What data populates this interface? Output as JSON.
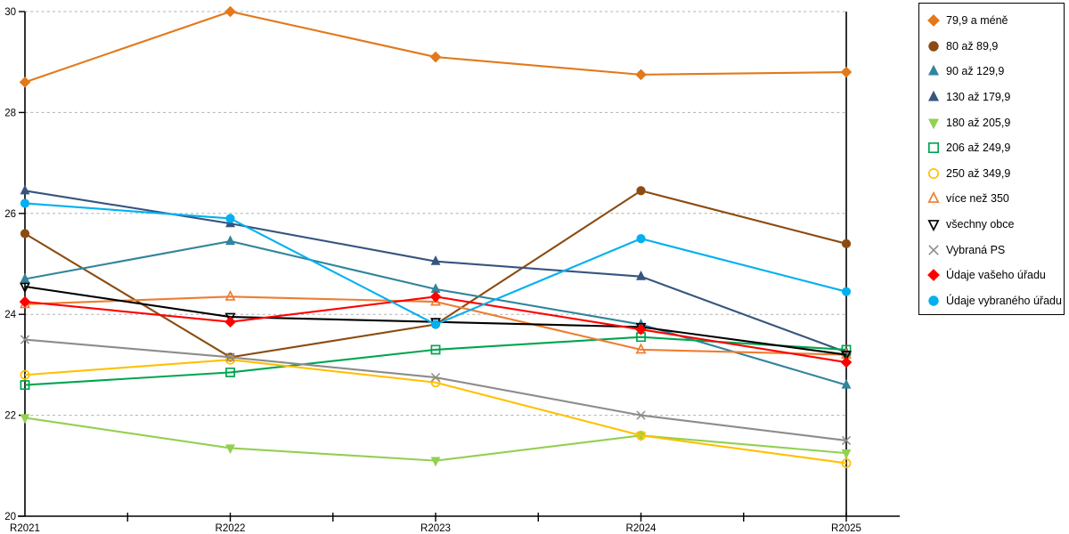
{
  "chart_data": {
    "type": "line",
    "title": "",
    "xlabel": "",
    "ylabel": "",
    "categories": [
      "R2021",
      "R2022",
      "R2023",
      "R2024",
      "R2025"
    ],
    "ylim": [
      20,
      30
    ],
    "yticks": [
      20,
      22,
      24,
      26,
      28,
      30
    ],
    "grid": "horizontal-dashed",
    "legend_position": "right",
    "series": [
      {
        "name": "79,9 a méně",
        "color": "#E2791B",
        "marker": "diamond",
        "filled": true,
        "values": [
          28.6,
          30.0,
          29.1,
          28.75,
          28.8
        ]
      },
      {
        "name": "80 až 89,9",
        "color": "#8C4B10",
        "marker": "circle",
        "filled": true,
        "values": [
          25.6,
          23.15,
          23.8,
          26.45,
          25.4
        ]
      },
      {
        "name": "90 až 129,9",
        "color": "#31859C",
        "marker": "triangle",
        "filled": true,
        "values": [
          24.7,
          25.45,
          24.5,
          23.8,
          22.6
        ]
      },
      {
        "name": "130 až 179,9",
        "color": "#36557F",
        "marker": "triangle",
        "filled": true,
        "values": [
          26.45,
          25.8,
          25.05,
          24.75,
          23.25
        ]
      },
      {
        "name": "180 až 205,9",
        "color": "#92D050",
        "marker": "triangle-down",
        "filled": true,
        "values": [
          21.95,
          21.35,
          21.1,
          21.6,
          21.25
        ]
      },
      {
        "name": "206 až 249,9",
        "color": "#00A550",
        "marker": "square",
        "filled": false,
        "values": [
          22.6,
          22.85,
          23.3,
          23.55,
          23.3
        ]
      },
      {
        "name": "250 až 349,9",
        "color": "#FFC000",
        "marker": "circle",
        "filled": false,
        "values": [
          22.8,
          23.1,
          22.65,
          21.6,
          21.05
        ]
      },
      {
        "name": "více než 350",
        "color": "#ED7D31",
        "marker": "triangle",
        "filled": false,
        "values": [
          24.2,
          24.35,
          24.25,
          23.3,
          23.2
        ]
      },
      {
        "name": "všechny obce",
        "color": "#000000",
        "marker": "triangle-down",
        "filled": false,
        "values": [
          24.55,
          23.95,
          23.85,
          23.75,
          23.2
        ]
      },
      {
        "name": "Vybraná PS",
        "color": "#8C8C8C",
        "marker": "x",
        "filled": false,
        "values": [
          23.5,
          23.15,
          22.75,
          22.0,
          21.5
        ]
      },
      {
        "name": "Údaje vašeho úřadu",
        "color": "#FF0000",
        "marker": "diamond",
        "filled": true,
        "values": [
          24.25,
          23.85,
          24.35,
          23.7,
          23.05
        ]
      },
      {
        "name": "Údaje vybraného úřadu",
        "color": "#00B0F0",
        "marker": "circle",
        "filled": true,
        "values": [
          26.2,
          25.9,
          23.8,
          25.5,
          24.45
        ]
      }
    ],
    "styles": {
      "axis_color": "#000000",
      "gridline_color": "#AFAFAF",
      "tick_label_color": "#000000",
      "background": "#FFFFFF"
    }
  }
}
